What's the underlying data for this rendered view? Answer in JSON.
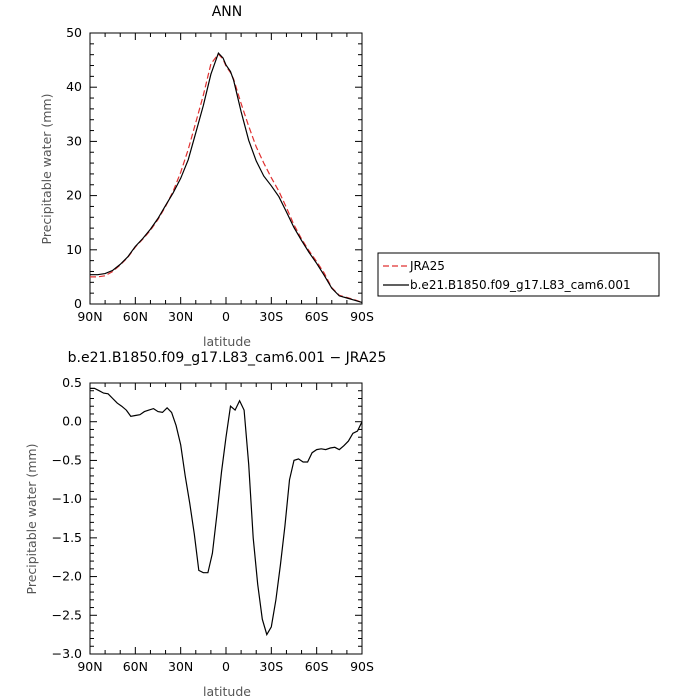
{
  "chart_data": [
    {
      "type": "line",
      "title": "ANN",
      "xlabel": "latitude",
      "ylabel": "Precipitable water (mm)",
      "xlim": [
        90,
        -90
      ],
      "ylim": [
        0,
        50
      ],
      "x_ticks": [
        90,
        60,
        30,
        0,
        -30,
        -60,
        -90
      ],
      "x_tick_labels": [
        "90N",
        "60N",
        "30N",
        "0",
        "30S",
        "60S",
        "90S"
      ],
      "y_ticks": [
        0,
        10,
        20,
        30,
        40,
        50
      ],
      "y_tick_labels": [
        "0",
        "10",
        "20",
        "30",
        "40",
        "50"
      ],
      "legend_position": "right, outside plot",
      "series": [
        {
          "name": "JRA25",
          "color": "#e03030",
          "dash": "dashed",
          "x": [
            90,
            85,
            80,
            75,
            70,
            65,
            60,
            55,
            50,
            45,
            40,
            35,
            30,
            25,
            20,
            15,
            10,
            5,
            2,
            0,
            -3,
            -5,
            -10,
            -15,
            -20,
            -25,
            -30,
            -35,
            -40,
            -45,
            -50,
            -55,
            -60,
            -65,
            -70,
            -75,
            -80,
            -85,
            -90
          ],
          "y": [
            5.0,
            5.0,
            5.2,
            6.0,
            7.2,
            8.6,
            10.5,
            12.0,
            13.6,
            15.6,
            18.0,
            20.8,
            24.3,
            28.5,
            33.5,
            38.5,
            44.3,
            46.1,
            45.2,
            43.9,
            42.7,
            41.5,
            37.0,
            32.8,
            29.0,
            26.0,
            23.3,
            20.8,
            17.8,
            14.6,
            12.0,
            9.8,
            7.8,
            5.7,
            3.0,
            1.6,
            1.2,
            0.8,
            0.3
          ]
        },
        {
          "name": "b.e21.B1850.f09_g17.L83_cam6.001",
          "color": "#000000",
          "dash": "solid",
          "x": [
            90,
            85,
            80,
            75,
            70,
            65,
            60,
            55,
            50,
            45,
            40,
            35,
            30,
            25,
            20,
            15,
            10,
            5,
            2,
            0,
            -3,
            -5,
            -10,
            -15,
            -20,
            -25,
            -30,
            -35,
            -40,
            -45,
            -50,
            -55,
            -60,
            -65,
            -70,
            -75,
            -80,
            -85,
            -90
          ],
          "y": [
            5.4,
            5.4,
            5.6,
            6.2,
            7.3,
            8.7,
            10.6,
            12.1,
            13.8,
            15.8,
            18.2,
            20.5,
            23.2,
            26.6,
            31.6,
            36.6,
            42.4,
            46.3,
            45.4,
            44.1,
            42.9,
            41.3,
            35.5,
            30.2,
            26.4,
            23.6,
            21.8,
            19.8,
            17.0,
            14.1,
            11.7,
            9.5,
            7.5,
            5.3,
            2.9,
            1.5,
            1.1,
            0.7,
            0.3
          ]
        }
      ]
    },
    {
      "type": "line",
      "title": "b.e21.B1850.f09_g17.L83_cam6.001 − JRA25",
      "xlabel": "latitude",
      "ylabel": "Precipitable water (mm)",
      "xlim": [
        90,
        -90
      ],
      "ylim": [
        -3.0,
        0.5
      ],
      "x_ticks": [
        90,
        60,
        30,
        0,
        -30,
        -60,
        -90
      ],
      "x_tick_labels": [
        "90N",
        "60N",
        "30N",
        "0",
        "30S",
        "60S",
        "90S"
      ],
      "y_ticks": [
        0.5,
        0.0,
        -0.5,
        -1.0,
        -1.5,
        -2.0,
        -2.5,
        -3.0
      ],
      "y_tick_labels": [
        "0.5",
        "0.0",
        "−0.5",
        "−1.0",
        "−1.5",
        "−2.0",
        "−2.5",
        "−3.0"
      ],
      "series": [
        {
          "color": "#000000",
          "dash": "solid",
          "x": [
            90,
            87,
            84,
            81,
            78,
            75,
            72,
            69,
            66,
            63,
            60,
            57,
            54,
            51,
            48,
            45,
            42,
            39,
            36,
            33,
            30,
            27,
            24,
            21,
            18,
            15,
            12,
            9,
            6,
            3,
            0,
            -3,
            -6,
            -9,
            -12,
            -15,
            -18,
            -21,
            -24,
            -27,
            -30,
            -33,
            -36,
            -39,
            -42,
            -45,
            -48,
            -51,
            -54,
            -57,
            -60,
            -63,
            -66,
            -69,
            -72,
            -75,
            -78,
            -81,
            -84,
            -87,
            -90
          ],
          "y": [
            0.43,
            0.43,
            0.4,
            0.37,
            0.36,
            0.3,
            0.24,
            0.2,
            0.15,
            0.07,
            0.08,
            0.09,
            0.13,
            0.15,
            0.17,
            0.13,
            0.12,
            0.18,
            0.12,
            -0.05,
            -0.3,
            -0.7,
            -1.05,
            -1.45,
            -1.92,
            -1.95,
            -1.95,
            -1.7,
            -1.2,
            -0.65,
            -0.2,
            0.2,
            0.15,
            0.27,
            0.15,
            -0.55,
            -1.5,
            -2.1,
            -2.55,
            -2.75,
            -2.65,
            -2.3,
            -1.85,
            -1.35,
            -0.75,
            -0.5,
            -0.48,
            -0.52,
            -0.52,
            -0.4,
            -0.36,
            -0.35,
            -0.36,
            -0.34,
            -0.33,
            -0.36,
            -0.31,
            -0.25,
            -0.15,
            -0.12,
            0.0
          ]
        }
      ]
    }
  ]
}
